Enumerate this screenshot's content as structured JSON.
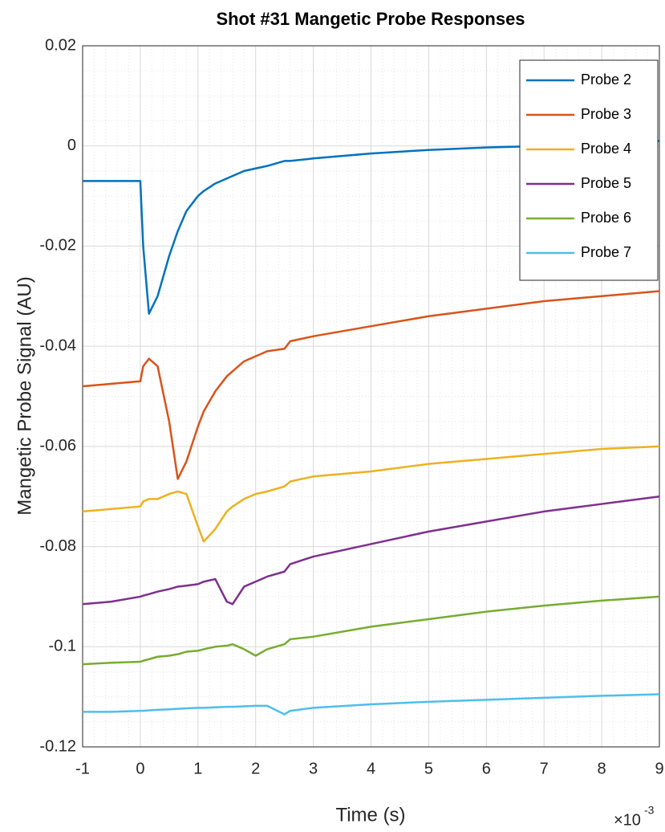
{
  "chart_data": {
    "type": "line",
    "title": "Shot #31 Mangetic Probe Responses",
    "x_label": "Time (s)",
    "y_label": "Mangetic Probe Signal (AU)",
    "x_scale_base": "×10",
    "x_scale_exponent": "-3",
    "xlim": [
      -1,
      9
    ],
    "xticks": [
      -1,
      0,
      1,
      2,
      3,
      4,
      5,
      6,
      7,
      8,
      9
    ],
    "ylim": [
      -0.12,
      0.02
    ],
    "yticks": [
      -0.12,
      -0.1,
      -0.08,
      -0.06,
      -0.04,
      -0.02,
      0,
      0.02
    ],
    "grid": true,
    "minor_grid": true,
    "legend": "northeast",
    "x": [
      -1,
      -0.5,
      0,
      0.05,
      0.15,
      0.3,
      0.5,
      0.65,
      0.8,
      1.0,
      1.1,
      1.3,
      1.5,
      1.6,
      1.8,
      2.0,
      2.2,
      2.5,
      2.6,
      3,
      4,
      5,
      6,
      7,
      8,
      9
    ],
    "series": [
      {
        "name": "Probe 2",
        "color": "#0072bd",
        "values": [
          -0.007,
          -0.007,
          -0.007,
          -0.02,
          -0.0335,
          -0.03,
          -0.022,
          -0.017,
          -0.013,
          -0.01,
          -0.009,
          -0.0075,
          -0.0065,
          -0.006,
          -0.005,
          -0.0045,
          -0.004,
          -0.003,
          -0.003,
          -0.0025,
          -0.0015,
          -0.0008,
          -0.0003,
          0,
          0.0005,
          0.001
        ]
      },
      {
        "name": "Probe 3",
        "color": "#d95319",
        "values": [
          -0.048,
          -0.0475,
          -0.047,
          -0.044,
          -0.0425,
          -0.044,
          -0.055,
          -0.0665,
          -0.063,
          -0.056,
          -0.053,
          -0.049,
          -0.046,
          -0.045,
          -0.043,
          -0.042,
          -0.041,
          -0.0405,
          -0.039,
          -0.038,
          -0.036,
          -0.034,
          -0.0325,
          -0.031,
          -0.03,
          -0.029
        ]
      },
      {
        "name": "Probe 4",
        "color": "#edb120",
        "values": [
          -0.073,
          -0.0725,
          -0.072,
          -0.071,
          -0.0705,
          -0.0705,
          -0.0695,
          -0.069,
          -0.0695,
          -0.076,
          -0.079,
          -0.0765,
          -0.073,
          -0.072,
          -0.0705,
          -0.0695,
          -0.069,
          -0.068,
          -0.067,
          -0.066,
          -0.065,
          -0.0635,
          -0.0625,
          -0.0615,
          -0.0605,
          -0.06
        ]
      },
      {
        "name": "Probe 5",
        "color": "#7e2f8e",
        "values": [
          -0.0915,
          -0.091,
          -0.09,
          -0.0898,
          -0.0895,
          -0.089,
          -0.0885,
          -0.088,
          -0.0878,
          -0.0875,
          -0.087,
          -0.0865,
          -0.091,
          -0.0915,
          -0.088,
          -0.087,
          -0.086,
          -0.085,
          -0.0835,
          -0.082,
          -0.0795,
          -0.077,
          -0.075,
          -0.073,
          -0.0715,
          -0.07
        ]
      },
      {
        "name": "Probe 6",
        "color": "#77ac30",
        "values": [
          -0.1035,
          -0.1032,
          -0.103,
          -0.1028,
          -0.1025,
          -0.102,
          -0.1018,
          -0.1015,
          -0.101,
          -0.1008,
          -0.1005,
          -0.1,
          -0.0998,
          -0.0995,
          -0.1005,
          -0.1018,
          -0.1005,
          -0.0995,
          -0.0985,
          -0.098,
          -0.096,
          -0.0945,
          -0.093,
          -0.0918,
          -0.0908,
          -0.09
        ]
      },
      {
        "name": "Probe 7",
        "color": "#4dbeee",
        "values": [
          -0.113,
          -0.113,
          -0.1128,
          -0.1128,
          -0.1127,
          -0.1126,
          -0.1125,
          -0.1124,
          -0.1123,
          -0.1122,
          -0.1122,
          -0.1121,
          -0.112,
          -0.112,
          -0.1119,
          -0.1118,
          -0.1118,
          -0.1135,
          -0.1128,
          -0.1122,
          -0.1115,
          -0.111,
          -0.1106,
          -0.1102,
          -0.1098,
          -0.1095
        ]
      }
    ]
  }
}
